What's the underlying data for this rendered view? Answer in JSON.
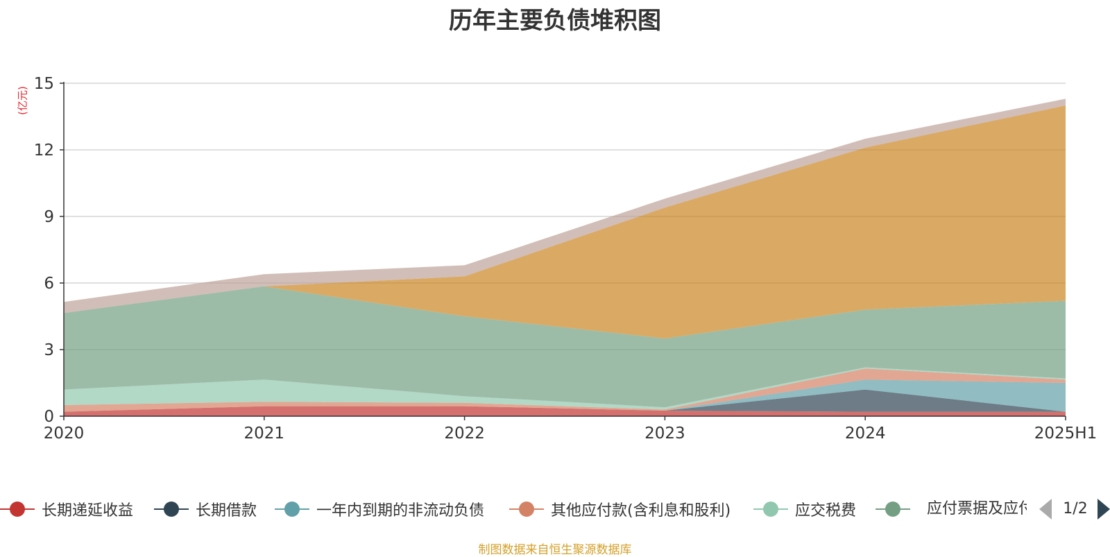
{
  "chart_data": {
    "type": "area",
    "stacked": true,
    "title": "历年主要负债堆积图",
    "ylabel": "(亿元)",
    "ylim": [
      0,
      15
    ],
    "yticks": [
      0,
      3,
      6,
      9,
      12,
      15
    ],
    "categories": [
      "2020",
      "2021",
      "2022",
      "2023",
      "2024",
      "2025H1"
    ],
    "grid": true,
    "legend_position": "bottom",
    "series": [
      {
        "name": "长期递延收益",
        "color": "#c23531",
        "values": [
          0.2,
          0.45,
          0.45,
          0.25,
          0.2,
          0.2
        ]
      },
      {
        "name": "长期借款",
        "color": "#2f4554",
        "values": [
          0.0,
          0.0,
          0.0,
          0.0,
          1.0,
          0.0
        ]
      },
      {
        "name": "一年内到期的非流动负债",
        "color": "#61a0a8",
        "values": [
          0.0,
          0.0,
          0.0,
          0.0,
          0.45,
          1.3
        ]
      },
      {
        "name": "其他应付款(含利息和股利)",
        "color": "#d48265",
        "values": [
          0.3,
          0.2,
          0.15,
          0.05,
          0.5,
          0.15
        ]
      },
      {
        "name": "应交税费",
        "color": "#91c7ae",
        "values": [
          0.7,
          1.0,
          0.3,
          0.1,
          0.05,
          0.05
        ]
      },
      {
        "name": "应付票据及应付账款",
        "color": "#749f83",
        "values": [
          3.45,
          4.2,
          3.6,
          3.1,
          2.6,
          3.5
        ]
      },
      {
        "name": "",
        "color": "#ca8622",
        "values": [
          0.0,
          0.0,
          1.8,
          5.9,
          7.3,
          8.8
        ]
      },
      {
        "name": "",
        "color": "#bda29a",
        "values": [
          0.5,
          0.55,
          0.5,
          0.4,
          0.4,
          0.3
        ]
      }
    ]
  },
  "legend": {
    "page_text": "1/2",
    "visible_items": [
      "长期递延收益",
      "长期借款",
      "一年内到期的非流动负债",
      "其他应付款(含利息和股利)",
      "应交税费",
      "应付票据及应付账款"
    ]
  },
  "source_note": "制图数据来自恒生聚源数据库"
}
